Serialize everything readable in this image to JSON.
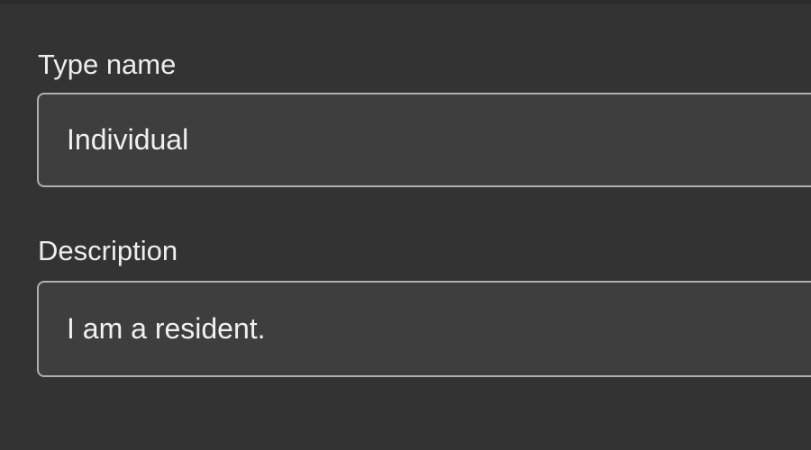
{
  "form": {
    "type_name": {
      "label": "Type name",
      "value": "Individual"
    },
    "description": {
      "label": "Description",
      "value": "I am a resident."
    }
  },
  "colors": {
    "background": "#333333",
    "field_background": "#3e3e3e",
    "field_border": "#b0b0b0",
    "text": "#eeeeee"
  }
}
